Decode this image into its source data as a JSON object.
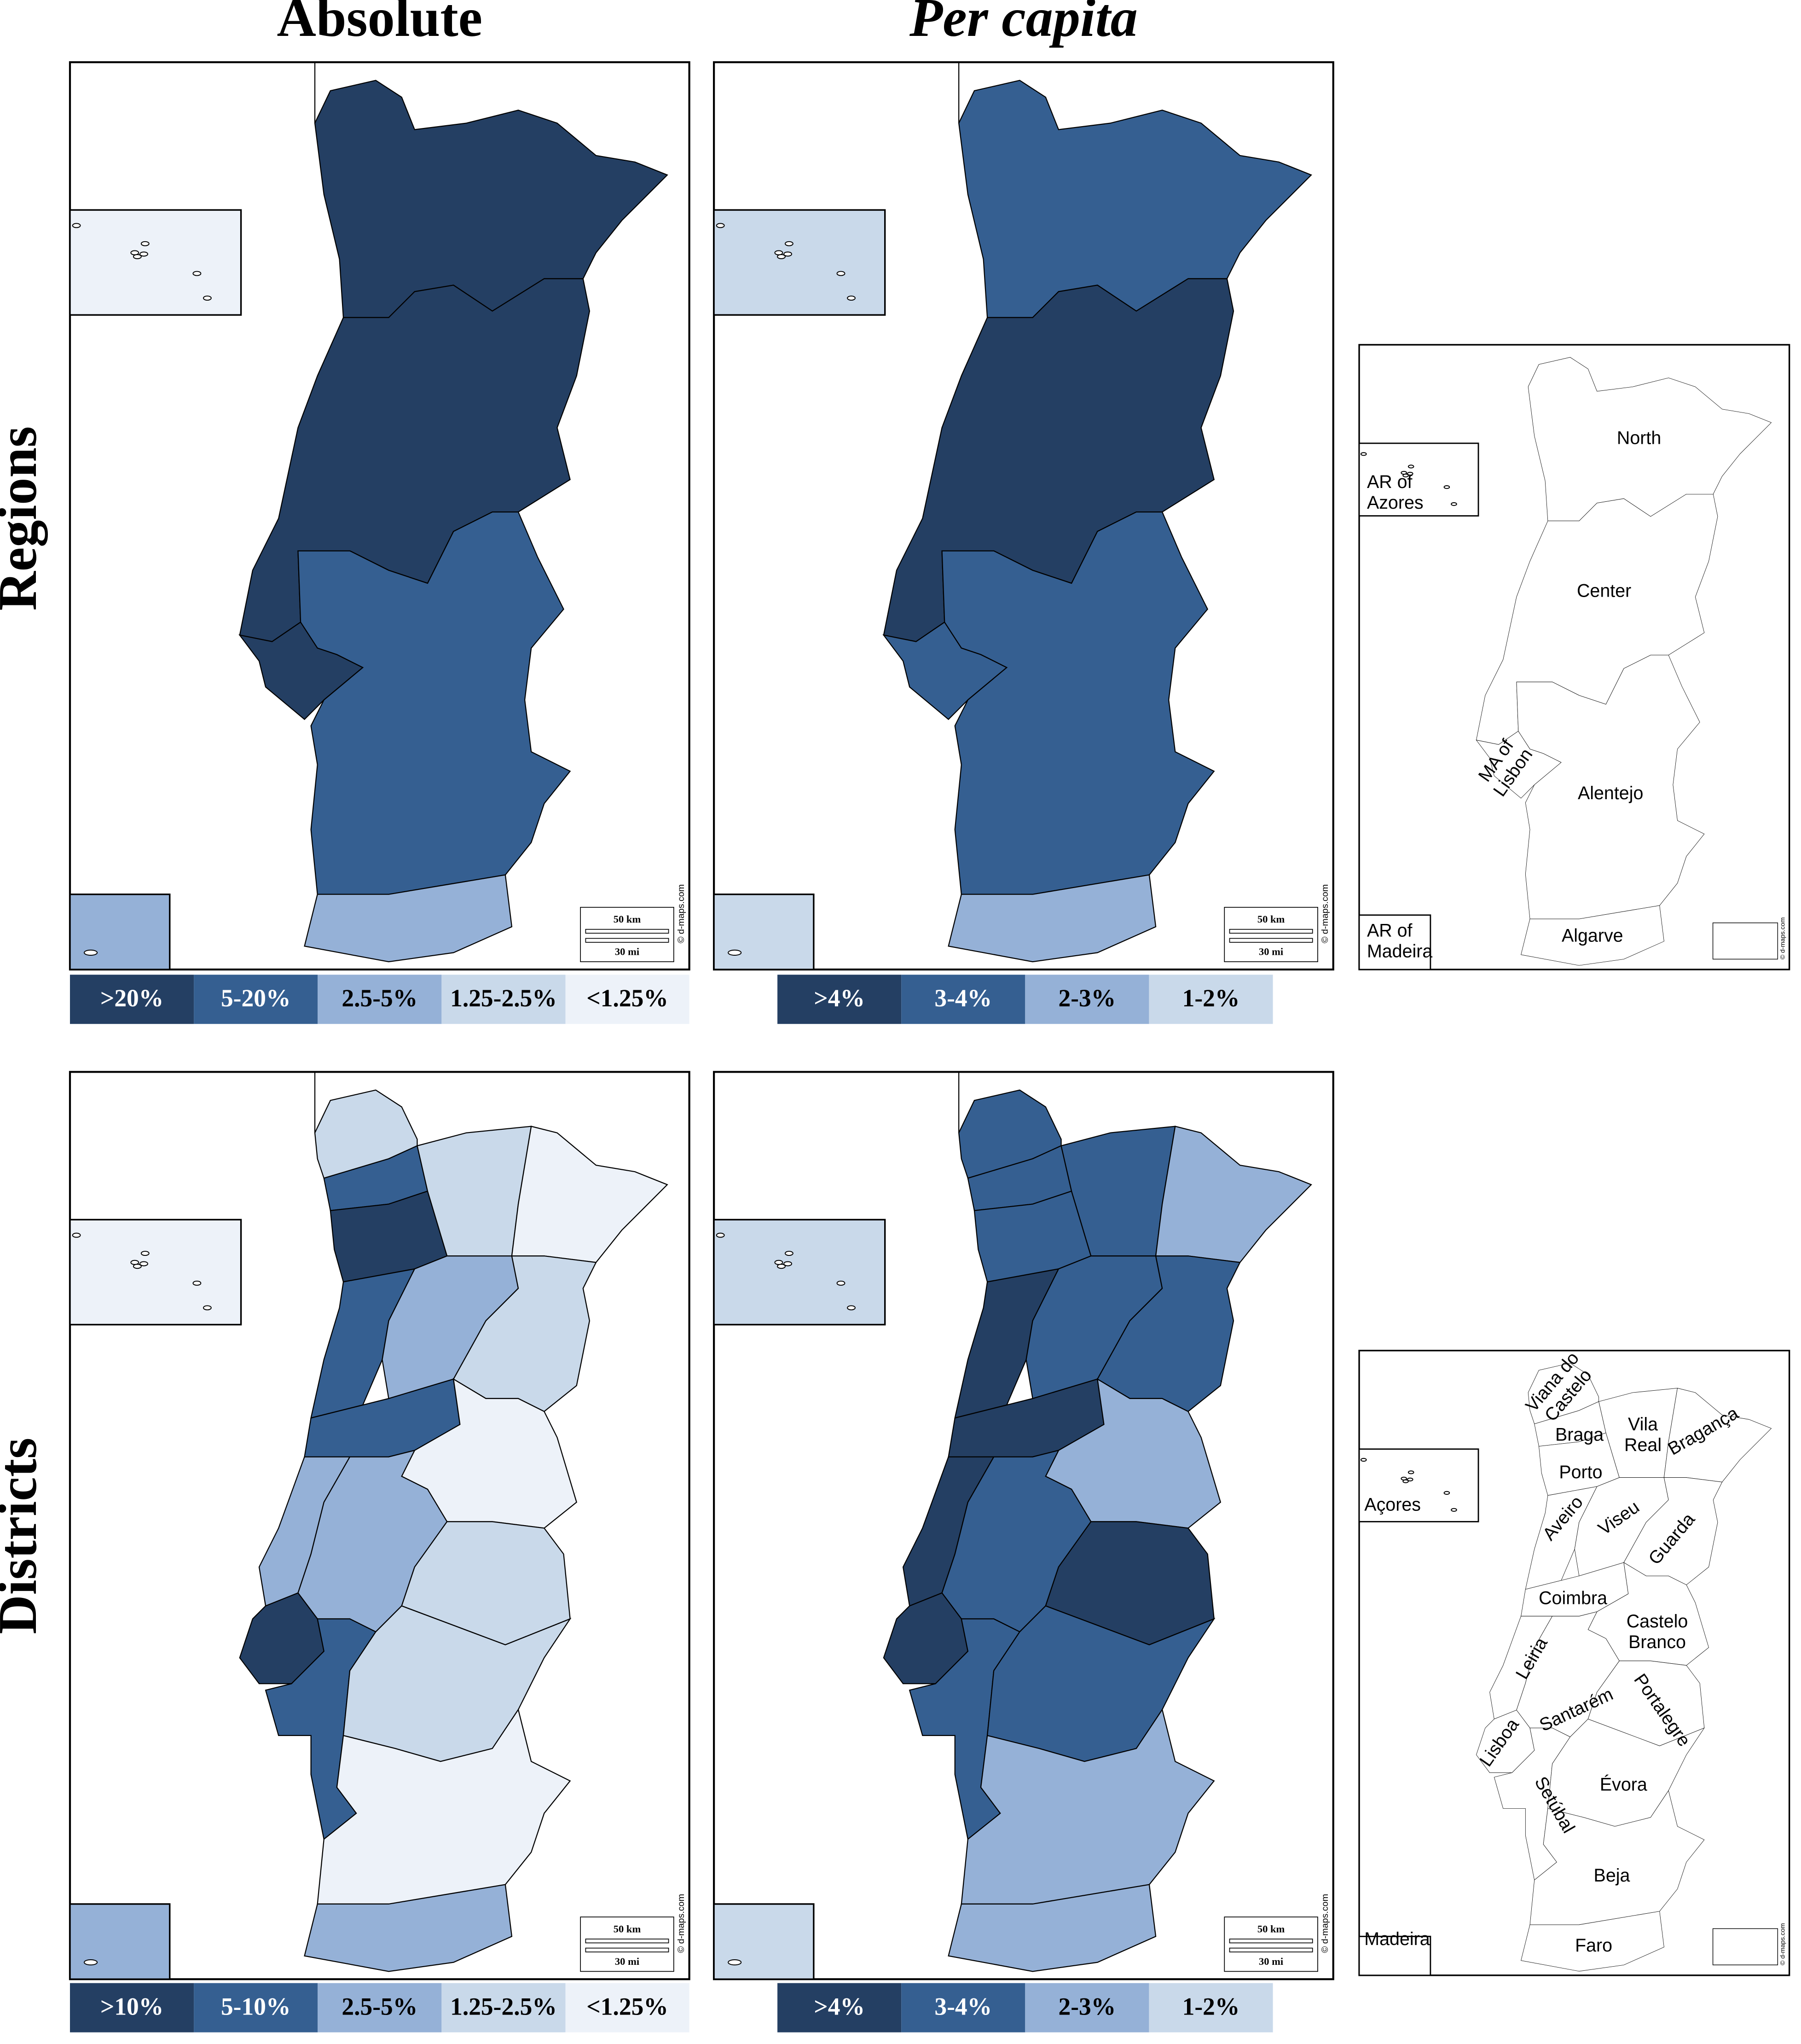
{
  "headers": {
    "absolute": "Absolute",
    "per_capita": "Per capita"
  },
  "rows": {
    "regions": "Regions",
    "districts": "Districts"
  },
  "legends": {
    "regions_absolute": {
      "labels": [
        ">20%",
        "5-20%",
        "2.5-5%",
        "1.25-2.5%",
        "<1.25%"
      ],
      "colors": [
        "#243f63",
        "#355f91",
        "#95b1d7",
        "#c9d9ea",
        "#edf2f9"
      ]
    },
    "regions_per_capita": {
      "labels": [
        ">4%",
        "3-4%",
        "2-3%",
        "1-2%"
      ],
      "colors": [
        "#243f63",
        "#355f91",
        "#95b1d7",
        "#c9d9ea"
      ]
    },
    "districts_absolute": {
      "labels": [
        ">10%",
        "5-10%",
        "2.5-5%",
        "1.25-2.5%",
        "<1.25%"
      ],
      "colors": [
        "#243f63",
        "#355f91",
        "#95b1d7",
        "#c9d9ea",
        "#edf2f9"
      ]
    },
    "districts_per_capita": {
      "labels": [
        ">4%",
        "3-4%",
        "2-3%",
        "1-2%"
      ],
      "colors": [
        "#243f63",
        "#355f91",
        "#95b1d7",
        "#c9d9ea"
      ]
    }
  },
  "scale_bar": {
    "km": "50 km",
    "mi": "30 mi",
    "credit": "© d-maps.com"
  },
  "reference_regions": {
    "labels": [
      [
        "AR of",
        "Azores"
      ],
      [
        "North"
      ],
      [
        "Center"
      ],
      [
        "MA of",
        "Lisbon"
      ],
      [
        "Alentejo"
      ],
      [
        "Algarve"
      ],
      [
        "AR of",
        "Madeira"
      ]
    ]
  },
  "reference_districts": {
    "labels": [
      [
        "Viana do",
        "Castelo"
      ],
      [
        "Braga"
      ],
      [
        "Vila",
        "Real"
      ],
      [
        "Porto"
      ],
      [
        "Bragança"
      ],
      [
        "Açores"
      ],
      [
        "Aveiro"
      ],
      [
        "Viseu"
      ],
      [
        "Guarda"
      ],
      [
        "Coimbra"
      ],
      [
        "Castelo",
        "Branco"
      ],
      [
        "Leiria"
      ],
      [
        "Santarém"
      ],
      [
        "Portalegre"
      ],
      [
        "Lisboa"
      ],
      [
        "Évora"
      ],
      [
        "Setúbal"
      ],
      [
        "Beja"
      ],
      [
        "Faro"
      ],
      [
        "Madeira"
      ]
    ]
  }
}
